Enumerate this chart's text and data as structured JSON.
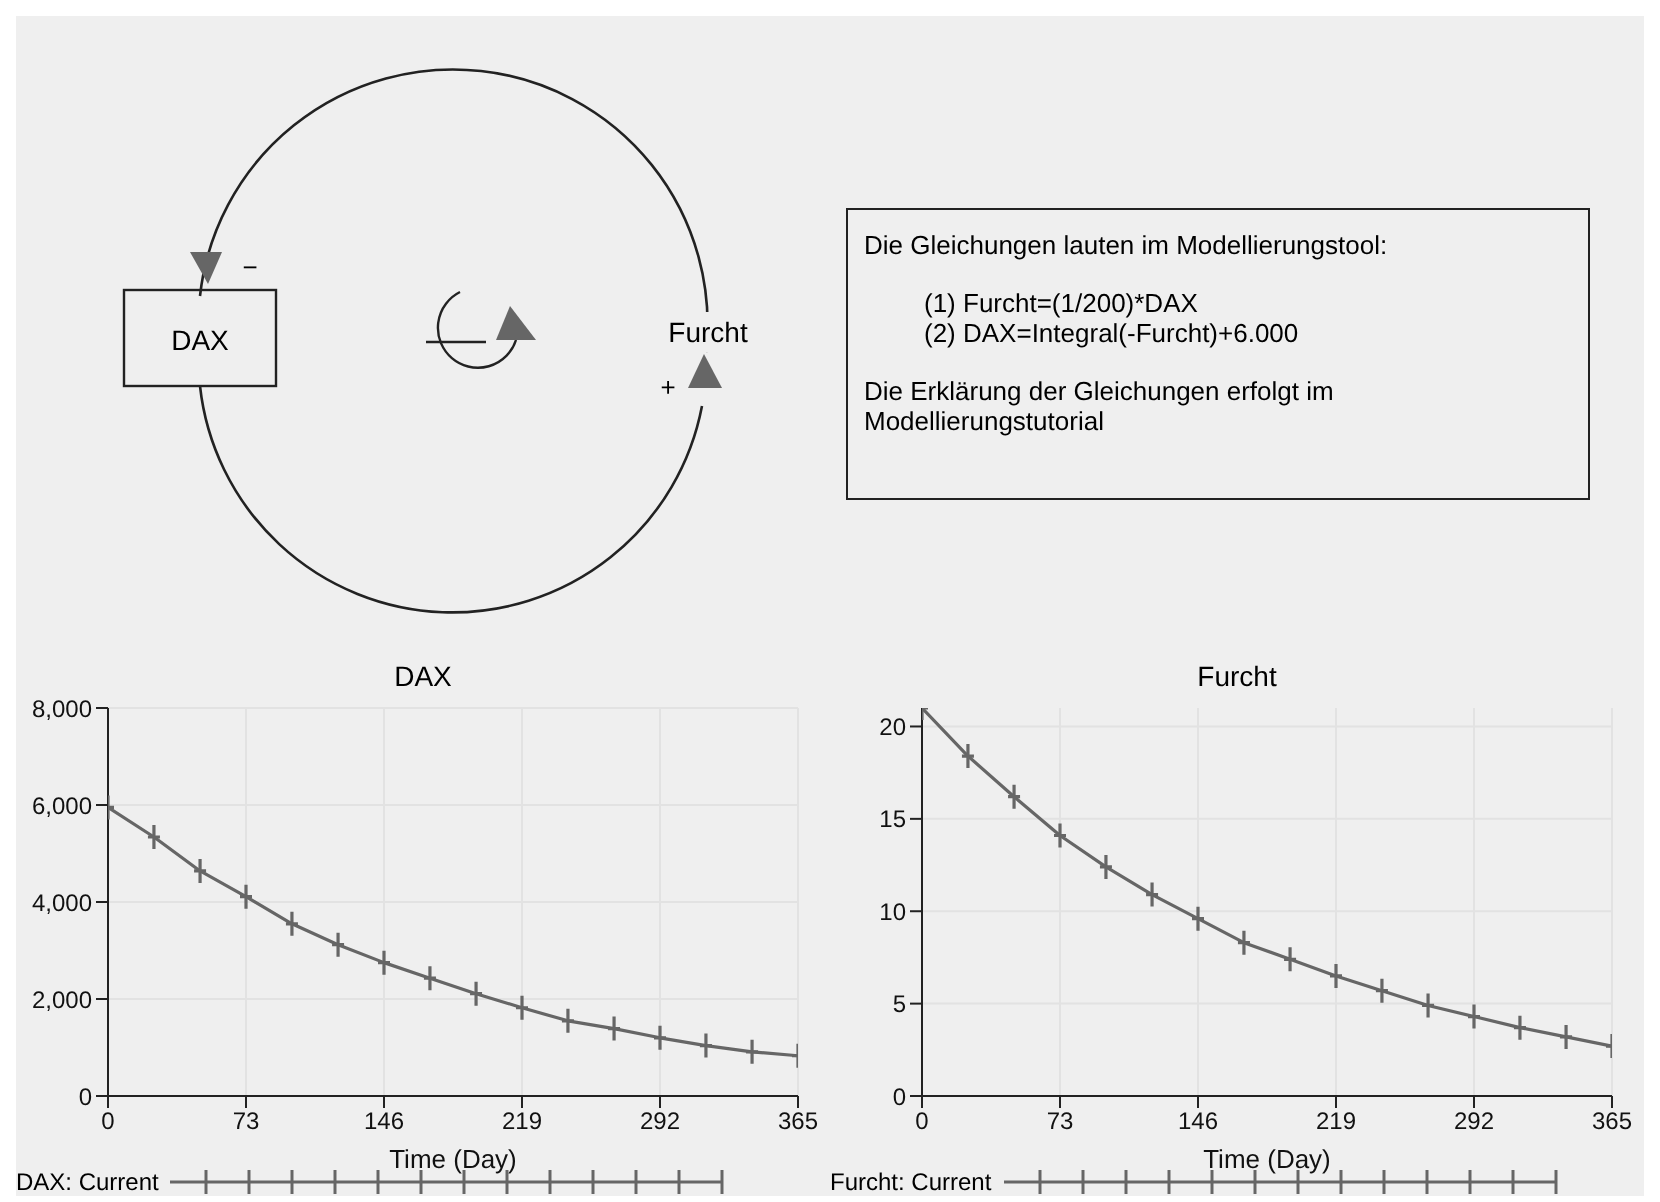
{
  "chart_data": [
    {
      "type": "other",
      "annotations": [
        "DAX",
        "Furcht",
        "−",
        "+",
        "Die Gleichungen lauten im Modellierungstool:",
        "(1) Furcht=(1/200)*DAX",
        "(2) DAX=Integral(-Furcht)+6.000",
        "Die Erklärung der Gleichungen erfolgt im Modellierungstutorial"
      ]
    },
    {
      "type": "line",
      "title": "DAX",
      "xlabel": "Time (Day)",
      "x": [
        0,
        24.3,
        48.7,
        73,
        97.3,
        121.7,
        146,
        170.3,
        194.7,
        219,
        243.3,
        267.7,
        292,
        316.3,
        340.7,
        365
      ],
      "series": [
        {
          "name": "DAX: Current",
          "color": "#666666",
          "values": [
            5950,
            5340,
            4640,
            4110,
            3550,
            3120,
            2750,
            2430,
            2110,
            1820,
            1550,
            1390,
            1200,
            1040,
            910,
            830
          ]
        }
      ],
      "xlim": [
        0,
        365
      ],
      "xticks": [
        0,
        73,
        146,
        219,
        292,
        365
      ],
      "ylim": [
        0,
        8000
      ],
      "yticks": [
        {
          "value": 0,
          "label": "0"
        },
        {
          "value": 2000,
          "label": "2,000"
        },
        {
          "value": 4000,
          "label": "4,000"
        },
        {
          "value": 6000,
          "label": "6,000"
        },
        {
          "value": 8000,
          "label": "8,000"
        }
      ],
      "grid": true,
      "legend": "bottom",
      "marker": "cross"
    },
    {
      "type": "line",
      "title": "Furcht",
      "xlabel": "Time (Day)",
      "x": [
        0,
        24.3,
        48.7,
        73,
        97.3,
        121.7,
        146,
        170.3,
        194.7,
        219,
        243.3,
        267.7,
        292,
        316.3,
        340.7,
        365
      ],
      "series": [
        {
          "name": "Furcht: Current",
          "color": "#666666",
          "values": [
            21,
            18.4,
            16.2,
            14.1,
            12.4,
            10.9,
            9.6,
            8.3,
            7.4,
            6.5,
            5.7,
            4.9,
            4.3,
            3.7,
            3.2,
            2.7
          ]
        }
      ],
      "xlim": [
        0,
        365
      ],
      "xticks": [
        0,
        73,
        146,
        219,
        292,
        365
      ],
      "ylim": [
        0,
        21
      ],
      "yticks": [
        0,
        5,
        10,
        15,
        20
      ],
      "grid": true,
      "legend": "bottom",
      "marker": "cross"
    }
  ]
}
